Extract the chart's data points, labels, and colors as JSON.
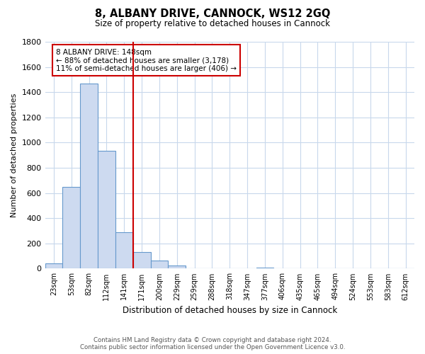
{
  "title": "8, ALBANY DRIVE, CANNOCK, WS12 2GQ",
  "subtitle": "Size of property relative to detached houses in Cannock",
  "xlabel": "Distribution of detached houses by size in Cannock",
  "ylabel": "Number of detached properties",
  "bar_labels": [
    "23sqm",
    "53sqm",
    "82sqm",
    "112sqm",
    "141sqm",
    "171sqm",
    "200sqm",
    "229sqm",
    "259sqm",
    "288sqm",
    "318sqm",
    "347sqm",
    "377sqm",
    "406sqm",
    "435sqm",
    "465sqm",
    "494sqm",
    "524sqm",
    "553sqm",
    "583sqm",
    "612sqm"
  ],
  "bar_values": [
    40,
    650,
    1470,
    935,
    290,
    130,
    65,
    25,
    5,
    0,
    0,
    0,
    10,
    0,
    0,
    0,
    0,
    0,
    0,
    0,
    0
  ],
  "bar_color": "#cddaf0",
  "bar_edge_color": "#6699cc",
  "vline_index": 4,
  "vline_color": "#cc0000",
  "ylim": [
    0,
    1800
  ],
  "yticks": [
    0,
    200,
    400,
    600,
    800,
    1000,
    1200,
    1400,
    1600,
    1800
  ],
  "annotation_title": "8 ALBANY DRIVE: 148sqm",
  "annotation_line1": "← 88% of detached houses are smaller (3,178)",
  "annotation_line2": "11% of semi-detached houses are larger (406) →",
  "annotation_box_color": "#ffffff",
  "annotation_box_edge": "#cc0000",
  "footer1": "Contains HM Land Registry data © Crown copyright and database right 2024.",
  "footer2": "Contains public sector information licensed under the Open Government Licence v3.0.",
  "background_color": "#ffffff",
  "grid_color": "#c8d8ec"
}
